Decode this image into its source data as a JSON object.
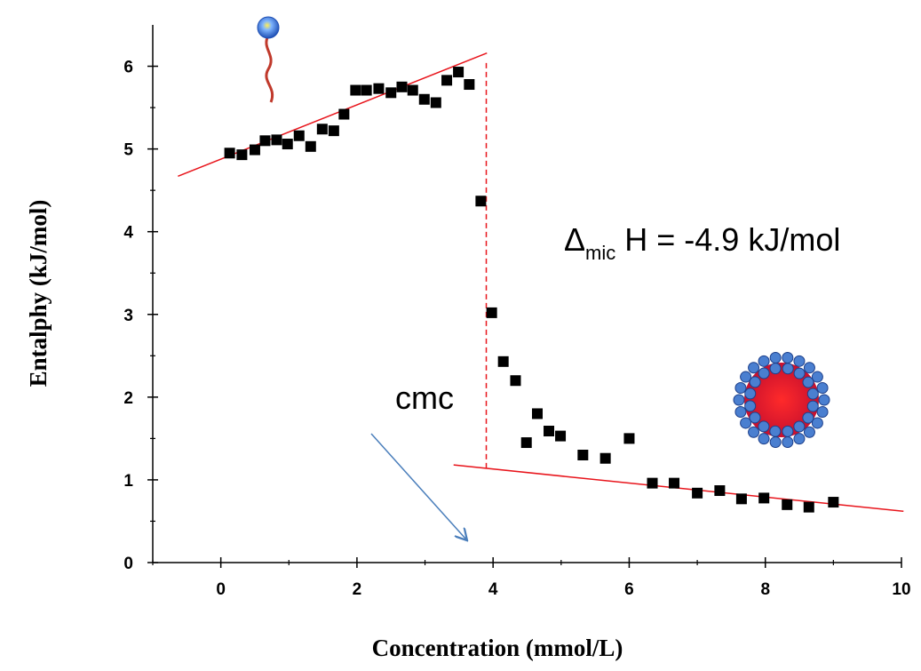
{
  "chart_data": {
    "type": "scatter",
    "x_label": "Concentration (mmol/L)",
    "y_label": "Entalphy (kJ/mol)",
    "xlim": [
      -1,
      10
    ],
    "ylim": [
      0,
      6.5
    ],
    "xticks": [
      0,
      2,
      4,
      6,
      8,
      10
    ],
    "yticks": [
      0,
      1,
      2,
      3,
      4,
      5,
      6
    ],
    "xminorticks": [
      -1,
      1,
      3,
      5,
      7,
      9
    ],
    "yminorticks": [
      0.5,
      1.5,
      2.5,
      3.5,
      4.5,
      5.5
    ],
    "color": "#000000",
    "x": [
      0.13,
      0.31,
      0.5,
      0.65,
      0.82,
      0.98,
      1.15,
      1.32,
      1.49,
      1.66,
      1.81,
      1.98,
      2.14,
      2.32,
      2.5,
      2.66,
      2.82,
      2.99,
      3.16,
      3.32,
      3.49,
      3.65,
      3.82,
      3.98,
      4.15,
      4.33,
      4.49,
      4.65,
      4.82,
      4.99,
      5.32,
      5.65,
      6.0,
      6.34,
      6.66,
      7.0,
      7.33,
      7.65,
      7.98,
      8.32,
      8.64,
      9.0
    ],
    "values": [
      4.95,
      4.93,
      4.99,
      5.1,
      5.11,
      5.06,
      5.16,
      5.03,
      5.24,
      5.22,
      5.42,
      5.71,
      5.71,
      5.73,
      5.68,
      5.75,
      5.71,
      5.6,
      5.56,
      5.83,
      5.93,
      5.78,
      4.37,
      3.02,
      2.43,
      2.2,
      1.45,
      1.8,
      1.59,
      1.53,
      1.3,
      1.26,
      1.5,
      0.96,
      0.96,
      0.84,
      0.87,
      0.77,
      0.78,
      0.7,
      0.67,
      0.73
    ],
    "fit_lines": [
      {
        "color": "#e8141b",
        "x": [
          -0.63,
          3.91
        ],
        "y": [
          4.67,
          6.16
        ]
      },
      {
        "color": "#e8141b",
        "x": [
          3.42,
          10.03
        ],
        "y": [
          1.18,
          0.62
        ]
      }
    ],
    "cmc_line": {
      "color": "#e8141b",
      "x": 3.9,
      "y": [
        1.14,
        6.06
      ]
    },
    "cmc_label": "cmc",
    "enthalpy_label": {
      "symbol": "Δ",
      "subscript": "mic",
      "text": " H = -4.9 kJ/mol"
    }
  }
}
